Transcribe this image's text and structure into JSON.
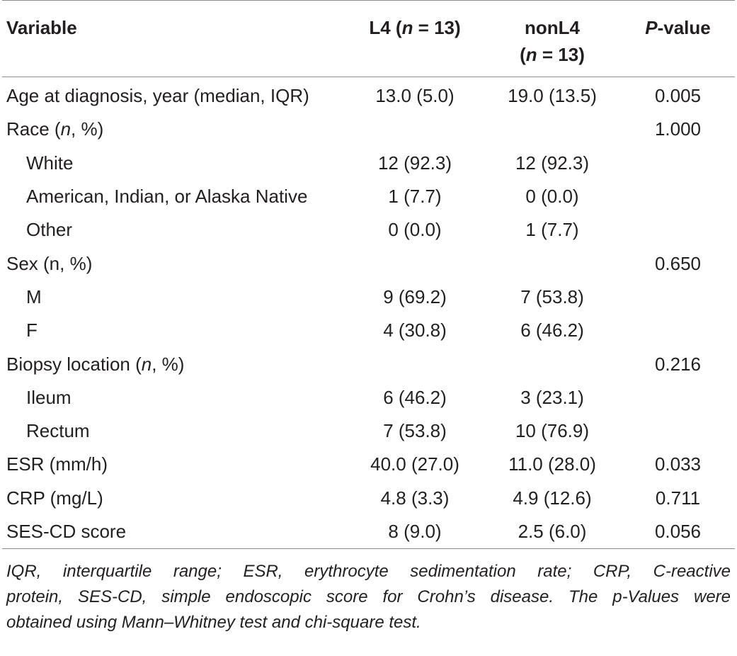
{
  "header": {
    "variable": "Variable",
    "l4_prefix": "L4 (",
    "l4_n": "n",
    "l4_suffix": " = 13)",
    "nonl4_line1": "nonL4",
    "nonl4_prefix": "(",
    "nonl4_n": "n",
    "nonl4_suffix": " = 13)",
    "p_italic": "P",
    "p_suffix": "-value"
  },
  "rows": [
    {
      "label_pre": "Age at diagnosis, year (median, IQR)",
      "label_it": "",
      "label_post": "",
      "l4": "13.0 (5.0)",
      "nonl4": "19.0 (13.5)",
      "p": "0.005"
    },
    {
      "label_pre": "Race (",
      "label_it": "n",
      "label_post": ", %)",
      "l4": "",
      "nonl4": "",
      "p": "1.000"
    },
    {
      "label_pre": "White",
      "label_it": "",
      "label_post": "",
      "l4": "12 (92.3)",
      "nonl4": "12 (92.3)",
      "p": ""
    },
    {
      "label_pre": "American, Indian, or Alaska Native",
      "label_it": "",
      "label_post": "",
      "l4": "1 (7.7)",
      "nonl4": "0 (0.0)",
      "p": ""
    },
    {
      "label_pre": "Other",
      "label_it": "",
      "label_post": "",
      "l4": "0 (0.0)",
      "nonl4": "1 (7.7)",
      "p": ""
    },
    {
      "label_pre": "Sex (n, %)",
      "label_it": "",
      "label_post": "",
      "l4": "",
      "nonl4": "",
      "p": "0.650"
    },
    {
      "label_pre": "M",
      "label_it": "",
      "label_post": "",
      "l4": "9 (69.2)",
      "nonl4": "7 (53.8)",
      "p": ""
    },
    {
      "label_pre": "F",
      "label_it": "",
      "label_post": "",
      "l4": "4 (30.8)",
      "nonl4": "6 (46.2)",
      "p": ""
    },
    {
      "label_pre": "Biopsy location (",
      "label_it": "n",
      "label_post": ", %)",
      "l4": "",
      "nonl4": "",
      "p": "0.216"
    },
    {
      "label_pre": "Ileum",
      "label_it": "",
      "label_post": "",
      "l4": "6 (46.2)",
      "nonl4": "3 (23.1)",
      "p": ""
    },
    {
      "label_pre": "Rectum",
      "label_it": "",
      "label_post": "",
      "l4": "7 (53.8)",
      "nonl4": "10 (76.9)",
      "p": ""
    },
    {
      "label_pre": "ESR (mm/h)",
      "label_it": "",
      "label_post": "",
      "l4": "40.0 (27.0)",
      "nonl4": "11.0 (28.0)",
      "p": "0.033"
    },
    {
      "label_pre": "CRP (mg/L)",
      "label_it": "",
      "label_post": "",
      "l4": "4.8 (3.3)",
      "nonl4": "4.9 (12.6)",
      "p": "0.711"
    },
    {
      "label_pre": "SES-CD score",
      "label_it": "",
      "label_post": "",
      "l4": "8 (9.0)",
      "nonl4": "2.5 (6.0)",
      "p": "0.056"
    }
  ],
  "footnote": {
    "line1": "IQR, interquartile range; ESR, erythrocyte sedimentation rate; CRP, C-reactive",
    "line2": "protein, SES-CD, simple endoscopic score for Crohn’s disease. The p-Values were",
    "line3": "obtained using Mann–Whitney test and chi-square test."
  }
}
